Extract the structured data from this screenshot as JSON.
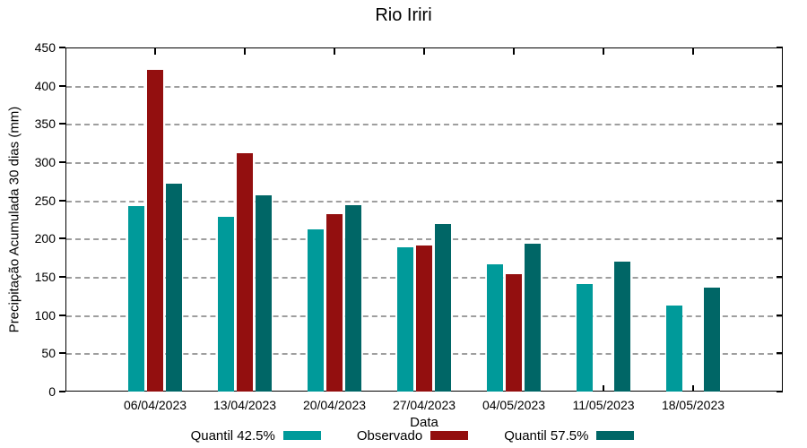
{
  "title": "Rio Iriri",
  "chart_data": {
    "type": "bar",
    "title": "Rio Iriri",
    "xlabel": "Data",
    "ylabel": "Precipitação Acumulada 30 dias (mm)",
    "ylim": [
      0,
      450
    ],
    "yticks": [
      0,
      50,
      100,
      150,
      200,
      250,
      300,
      350,
      400,
      450
    ],
    "grid": true,
    "legend_position": "bottom",
    "categories": [
      "06/04/2023",
      "13/04/2023",
      "20/04/2023",
      "27/04/2023",
      "04/05/2023",
      "11/05/2023",
      "18/05/2023"
    ],
    "series": [
      {
        "name": "Quantil 42.5%",
        "color": "#009A9A",
        "values": [
          242,
          228,
          212,
          189,
          166,
          141,
          113
        ]
      },
      {
        "name": "Observado",
        "color": "#930F0F",
        "values": [
          421,
          312,
          232,
          191,
          153,
          null,
          null
        ]
      },
      {
        "name": "Quantil 57.5%",
        "color": "#006666",
        "values": [
          272,
          257,
          244,
          219,
          193,
          170,
          136
        ]
      }
    ],
    "colors": {
      "background": "#FFFFFF",
      "axis": "#000000",
      "grid": "#9E9E9E",
      "text": "#000000"
    }
  }
}
